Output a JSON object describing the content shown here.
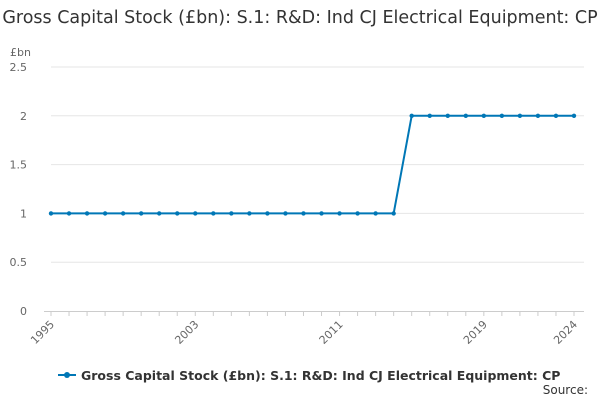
{
  "chart_data": {
    "type": "line",
    "title": "Gross Capital Stock (£bn): S.1: R&D: Ind CJ Electrical Equipment: CP",
    "y_unit": "£bn",
    "xlabel": "",
    "ylabel": "",
    "x": [
      1995,
      1996,
      1997,
      1998,
      1999,
      2000,
      2001,
      2002,
      2003,
      2004,
      2005,
      2006,
      2007,
      2008,
      2009,
      2010,
      2011,
      2012,
      2013,
      2014,
      2015,
      2016,
      2017,
      2018,
      2019,
      2020,
      2021,
      2022,
      2023,
      2024
    ],
    "x_tick_labels": [
      "1995",
      "2003",
      "2011",
      "2019",
      "2024"
    ],
    "x_ticks": [
      1995,
      2003,
      2011,
      2019,
      2024
    ],
    "y_ticks": [
      0,
      0.5,
      1,
      1.5,
      2,
      2.5
    ],
    "y_tick_labels": [
      "0",
      "0.5",
      "1",
      "1.5",
      "2",
      "2.5"
    ],
    "ylim": [
      0,
      2.5
    ],
    "xlim": [
      1995,
      2024
    ],
    "grid": true,
    "legend_position": "bottom",
    "series": [
      {
        "name": "Gross Capital Stock (£bn): S.1: R&D: Ind CJ Electrical Equipment: CP",
        "color": "#0077b6",
        "values": [
          1,
          1,
          1,
          1,
          1,
          1,
          1,
          1,
          1,
          1,
          1,
          1,
          1,
          1,
          1,
          1,
          1,
          1,
          1,
          1,
          2,
          2,
          2,
          2,
          2,
          2,
          2,
          2,
          2,
          2
        ]
      }
    ]
  },
  "source_label": "Source:"
}
